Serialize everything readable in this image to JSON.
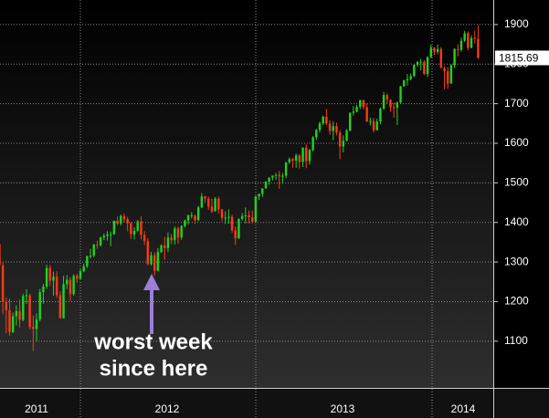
{
  "chart_data": {
    "type": "candlestick",
    "up_color": "#1fd41f",
    "down_color": "#ff3a12",
    "ylim": [
      982,
      1962
    ],
    "yticks": [
      1100,
      1200,
      1300,
      1400,
      1500,
      1600,
      1700,
      1800,
      1900
    ],
    "grid": true,
    "periods": [
      "2011",
      "2012",
      "2013",
      "2014"
    ],
    "annotation": [
      "worst week",
      "since here"
    ],
    "open": [
      1353,
      1345,
      1292,
      1199,
      1178,
      1123,
      1163,
      1176,
      1154,
      1214,
      1216,
      1136,
      1131,
      1155,
      1224,
      1238,
      1285,
      1253,
      1263,
      1216,
      1158,
      1244,
      1255,
      1219,
      1265,
      1258,
      1277,
      1289,
      1315,
      1316,
      1344,
      1342,
      1362,
      1366,
      1370,
      1370,
      1404,
      1397,
      1416,
      1408,
      1398,
      1370,
      1379,
      1403,
      1369,
      1353,
      1295,
      1317,
      1278,
      1325,
      1342,
      1335,
      1362,
      1355,
      1385,
      1362,
      1391,
      1405,
      1418,
      1418,
      1406,
      1438,
      1466,
      1460,
      1440,
      1428,
      1460,
      1433,
      1411,
      1412,
      1414,
      1380,
      1360,
      1409,
      1416,
      1418,
      1413,
      1402,
      1466,
      1472,
      1486,
      1503,
      1513,
      1518,
      1520,
      1516,
      1518,
      1552,
      1560,
      1556,
      1569,
      1553,
      1589,
      1555,
      1583,
      1615,
      1634,
      1650,
      1667,
      1650,
      1631,
      1643,
      1627,
      1592,
      1606,
      1632,
      1677,
      1680,
      1692,
      1709,
      1691,
      1655,
      1656,
      1633,
      1655,
      1687,
      1722,
      1710,
      1691,
      1690,
      1703,
      1744,
      1759,
      1762,
      1770,
      1798,
      1805,
      1806,
      1775,
      1818,
      1841,
      1831,
      1838,
      1790,
      1782,
      1751,
      1797,
      1838,
      1836,
      1859,
      1878,
      1841,
      1866,
      1864
    ],
    "high": [
      1357,
      1350,
      1300,
      1210,
      1208,
      1172,
      1190,
      1205,
      1220,
      1231,
      1220,
      1165,
      1170,
      1232,
      1245,
      1293,
      1292,
      1276,
      1277,
      1226,
      1265,
      1267,
      1262,
      1269,
      1270,
      1284,
      1296,
      1316,
      1333,
      1346,
      1354,
      1364,
      1372,
      1378,
      1377,
      1405,
      1415,
      1420,
      1422,
      1414,
      1401,
      1388,
      1406,
      1415,
      1378,
      1360,
      1326,
      1324,
      1335,
      1345,
      1363,
      1375,
      1371,
      1390,
      1389,
      1393,
      1407,
      1420,
      1426,
      1419,
      1442,
      1474,
      1467,
      1465,
      1460,
      1464,
      1465,
      1434,
      1428,
      1433,
      1420,
      1390,
      1410,
      1424,
      1438,
      1430,
      1430,
      1467,
      1473,
      1486,
      1504,
      1514,
      1519,
      1525,
      1530,
      1525,
      1552,
      1564,
      1563,
      1574,
      1573,
      1590,
      1597,
      1586,
      1618,
      1636,
      1655,
      1670,
      1687,
      1658,
      1655,
      1652,
      1633,
      1620,
      1636,
      1678,
      1694,
      1697,
      1710,
      1710,
      1700,
      1665,
      1664,
      1662,
      1690,
      1730,
      1726,
      1711,
      1703,
      1705,
      1745,
      1760,
      1775,
      1776,
      1799,
      1808,
      1813,
      1810,
      1819,
      1849,
      1843,
      1850,
      1843,
      1795,
      1793,
      1800,
      1840,
      1850,
      1867,
      1884,
      1883,
      1873,
      1885,
      1897
    ],
    "low": [
      1338,
      1282,
      1168,
      1120,
      1114,
      1120,
      1140,
      1135,
      1150,
      1194,
      1130,
      1075,
      1100,
      1150,
      1195,
      1232,
      1240,
      1215,
      1210,
      1157,
      1158,
      1232,
      1202,
      1215,
      1248,
      1254,
      1274,
      1285,
      1309,
      1312,
      1333,
      1340,
      1355,
      1354,
      1340,
      1369,
      1393,
      1392,
      1401,
      1378,
      1358,
      1357,
      1376,
      1357,
      1343,
      1291,
      1291,
      1266,
      1276,
      1323,
      1306,
      1325,
      1345,
      1344,
      1346,
      1356,
      1387,
      1395,
      1410,
      1396,
      1403,
      1436,
      1449,
      1432,
      1424,
      1428,
      1423,
      1403,
      1396,
      1397,
      1374,
      1343,
      1358,
      1405,
      1398,
      1398,
      1398,
      1398,
      1457,
      1465,
      1485,
      1495,
      1506,
      1508,
      1485,
      1497,
      1512,
      1548,
      1538,
      1538,
      1536,
      1540,
      1537,
      1546,
      1579,
      1608,
      1627,
      1646,
      1646,
      1622,
      1608,
      1620,
      1560,
      1577,
      1605,
      1630,
      1670,
      1678,
      1686,
      1685,
      1654,
      1645,
      1627,
      1633,
      1648,
      1686,
      1701,
      1680,
      1665,
      1646,
      1700,
      1743,
      1746,
      1759,
      1767,
      1793,
      1784,
      1772,
      1767,
      1815,
      1823,
      1825,
      1790,
      1737,
      1738,
      1750,
      1790,
      1820,
      1832,
      1856,
      1835,
      1840,
      1852,
      1814
    ],
    "close": [
      1345,
      1292,
      1199,
      1178,
      1123,
      1163,
      1176,
      1154,
      1214,
      1216,
      1136,
      1131,
      1155,
      1224,
      1238,
      1285,
      1253,
      1263,
      1216,
      1158,
      1244,
      1255,
      1219,
      1265,
      1258,
      1277,
      1289,
      1315,
      1316,
      1344,
      1342,
      1362,
      1366,
      1370,
      1370,
      1404,
      1397,
      1416,
      1408,
      1398,
      1370,
      1379,
      1403,
      1369,
      1353,
      1295,
      1317,
      1278,
      1325,
      1342,
      1335,
      1362,
      1355,
      1385,
      1362,
      1391,
      1405,
      1418,
      1418,
      1406,
      1438,
      1466,
      1460,
      1440,
      1428,
      1460,
      1433,
      1411,
      1412,
      1414,
      1380,
      1360,
      1409,
      1416,
      1418,
      1413,
      1402,
      1466,
      1472,
      1486,
      1503,
      1513,
      1518,
      1520,
      1516,
      1518,
      1552,
      1560,
      1556,
      1569,
      1553,
      1589,
      1555,
      1583,
      1615,
      1634,
      1650,
      1667,
      1650,
      1631,
      1643,
      1627,
      1592,
      1606,
      1632,
      1677,
      1680,
      1692,
      1709,
      1691,
      1655,
      1656,
      1633,
      1655,
      1687,
      1722,
      1710,
      1691,
      1690,
      1703,
      1744,
      1759,
      1762,
      1770,
      1798,
      1805,
      1806,
      1775,
      1818,
      1841,
      1831,
      1838,
      1790,
      1782,
      1751,
      1797,
      1838,
      1836,
      1859,
      1878,
      1841,
      1866,
      1864,
      1815.69
    ]
  }
}
